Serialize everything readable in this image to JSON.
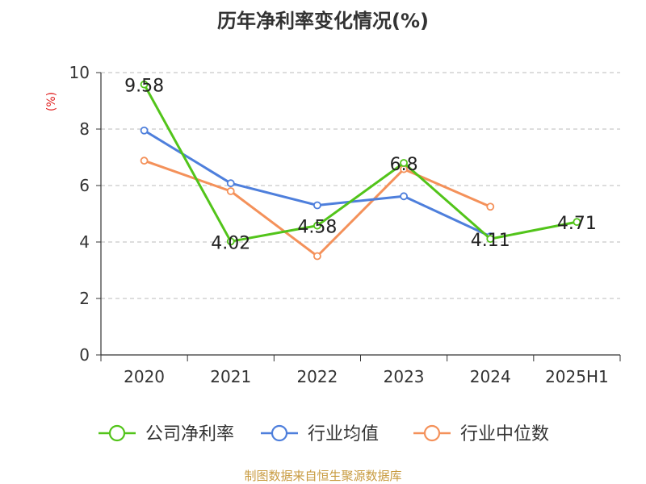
{
  "chart_data": {
    "type": "line",
    "title": "历年净利率变化情况(%)",
    "ylabel": "(%)",
    "xlabel": "",
    "categories": [
      "2020",
      "2021",
      "2022",
      "2023",
      "2024",
      "2025H1"
    ],
    "ylim": [
      0,
      10
    ],
    "yticks": [
      0,
      2,
      4,
      6,
      8,
      10
    ],
    "grid": true,
    "legend_position": "bottom",
    "series": [
      {
        "name": "公司净利率",
        "color": "#52c41a",
        "values": [
          9.58,
          4.02,
          4.58,
          6.8,
          4.11,
          4.71
        ],
        "labels": [
          "9.58",
          "4.02",
          "4.58",
          "6.8",
          "4.11",
          "4.71"
        ]
      },
      {
        "name": "行业均值",
        "color": "#4e7fdc",
        "values": [
          7.95,
          6.08,
          5.3,
          5.62,
          4.2,
          null
        ]
      },
      {
        "name": "行业中位数",
        "color": "#f4915a",
        "values": [
          6.88,
          5.8,
          3.5,
          6.58,
          5.25,
          null
        ]
      }
    ],
    "source": "制图数据来自恒生聚源数据库",
    "colors": {
      "axis": "#333333",
      "grid": "#bbbbbb",
      "ylabel": "#e02020",
      "source": "#c89b40"
    }
  }
}
